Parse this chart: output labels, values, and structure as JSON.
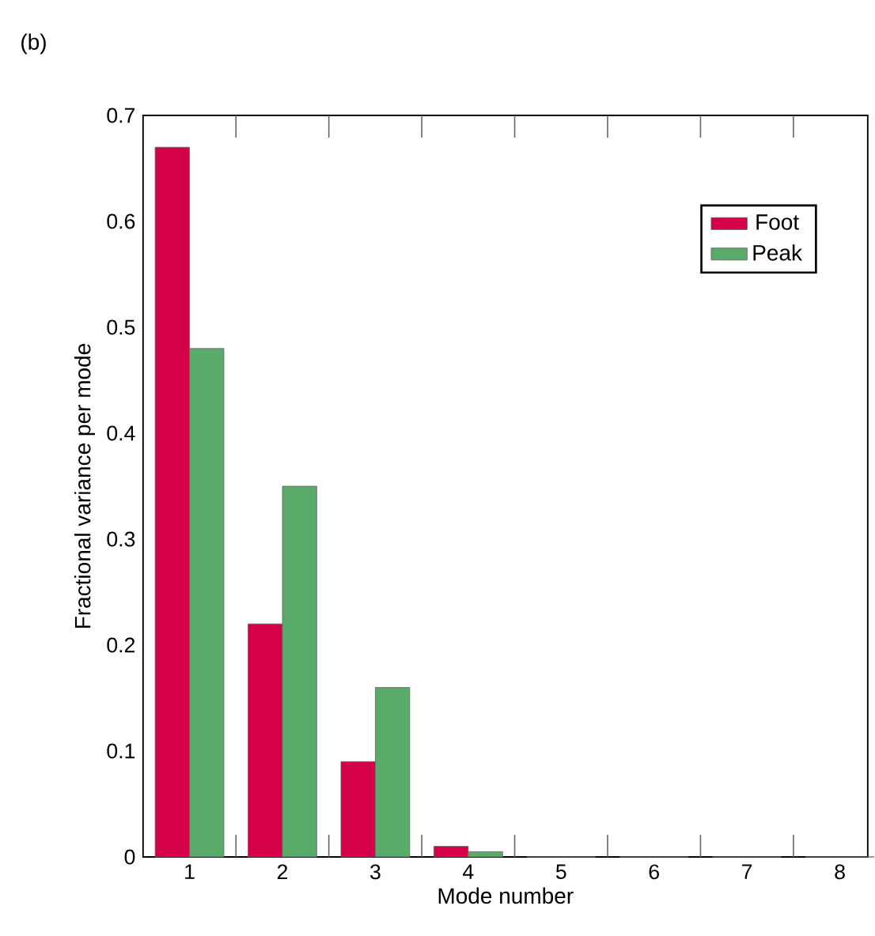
{
  "chart_data": {
    "type": "bar",
    "title": "(b)",
    "xlabel": "Mode number",
    "ylabel": "Fractional variance per mode",
    "categories": [
      "1",
      "2",
      "3",
      "4",
      "5",
      "6",
      "7",
      "8"
    ],
    "series": [
      {
        "name": "Foot",
        "color": "#d4004a",
        "values": [
          0.67,
          0.22,
          0.09,
          0.01,
          0,
          0,
          0,
          0
        ]
      },
      {
        "name": "Peak",
        "color": "#5aab6a",
        "values": [
          0.48,
          0.35,
          0.16,
          0.005,
          0,
          0,
          0,
          0
        ]
      }
    ],
    "ylim": [
      0,
      0.7
    ],
    "yticks": [
      0,
      0.1,
      0.2,
      0.3,
      0.4,
      0.5,
      0.6,
      0.7
    ],
    "legend": "top right",
    "grid": false
  }
}
